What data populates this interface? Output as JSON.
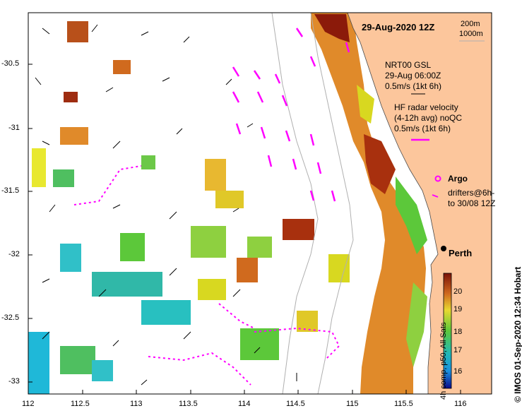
{
  "title": "29-Aug-2020 12Z",
  "depth_contours": [
    "200m",
    "1000m"
  ],
  "legend": {
    "gsl": [
      "NRT00 GSL",
      "29-Aug 06:00Z",
      "0.5m/s (1kt 6h)"
    ],
    "hf_radar": [
      "HF radar velocity",
      "(4-12h avg) noQC",
      "0.5m/s (1kt 6h)"
    ],
    "argo": "Argo",
    "drifters": [
      "drifters@6h-",
      "to 30/08 12Z"
    ]
  },
  "place": "Perth",
  "colorbar": {
    "title": "4h comp, p50, All Sats",
    "ticks": [
      "20",
      "19",
      "18",
      "17",
      "16"
    ]
  },
  "credit": "© IMOS 01-Sep-2020 12:34 Hobart",
  "axes": {
    "y_labels": [
      "-30.5",
      "-31",
      "-31.5",
      "-32",
      "-32.5",
      "-33"
    ],
    "x_labels": [
      "112",
      "112.5",
      "113",
      "113.5",
      "114",
      "114.5",
      "115",
      "115.5",
      "116"
    ]
  },
  "colors": {
    "land": "#fcc69c",
    "hf": "#ff00ff",
    "warm": "#8b1a0a",
    "cool": "#1fb8d8"
  }
}
